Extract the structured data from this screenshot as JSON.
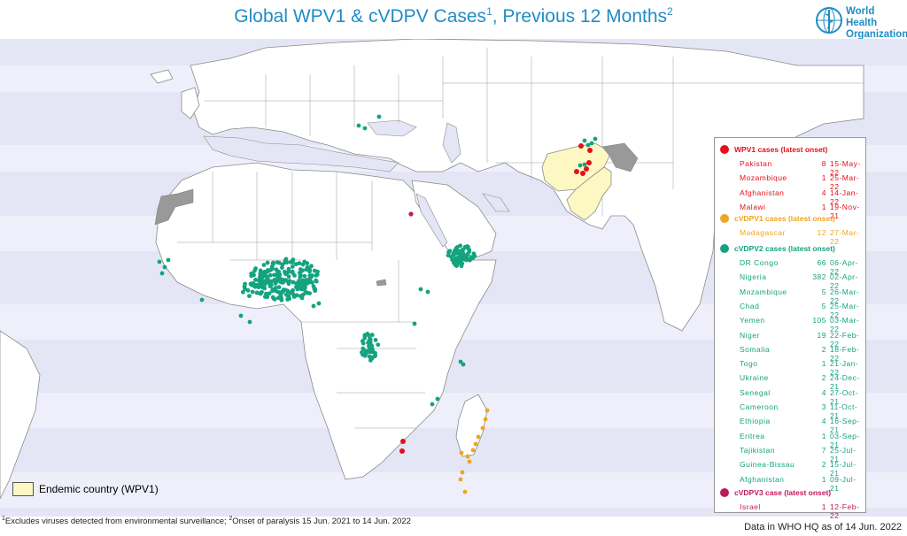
{
  "title": {
    "main": "Global WPV1 & cVDPV Cases",
    "sup1": "1",
    "rest": ", Previous 12 Months",
    "sup2": "2"
  },
  "logo": {
    "org_name": "World Health\nOrganization",
    "icon": "who-emblem-icon"
  },
  "colors": {
    "ocean": "#e4e6f6",
    "ocean_band": "#eeeffb",
    "land": "#ffffff",
    "endemic": "#fdf8c3",
    "no_data": "#999999",
    "wpv1": "#e3101a",
    "cvdpv1": "#f0a51e",
    "cvdpv2": "#14a37f",
    "cvdpv3": "#c0185c"
  },
  "legend": {
    "wpv1": {
      "header": "WPV1 cases (latest onset)",
      "rows": [
        {
          "country": "Pakistan",
          "count": "8",
          "date": "15-May-22"
        },
        {
          "country": "Mozambique",
          "count": "1",
          "date": "25-Mar-22"
        },
        {
          "country": "Afghanistan",
          "count": "4",
          "date": "14-Jan-22"
        },
        {
          "country": "Malawi",
          "count": "1",
          "date": "19-Nov-21"
        }
      ]
    },
    "cvdpv1": {
      "header": "cVDPV1 cases (latest onset)",
      "rows": [
        {
          "country": "Madagascar",
          "count": "12",
          "date": "27-Mar-22"
        }
      ]
    },
    "cvdpv2": {
      "header": "cVDPV2 cases (latest onset)",
      "rows": [
        {
          "country": "DR Congo",
          "count": "66",
          "date": "06-Apr-22"
        },
        {
          "country": "Nigeria",
          "count": "382",
          "date": "02-Apr-22"
        },
        {
          "country": "Mozambique",
          "count": "5",
          "date": "26-Mar-22"
        },
        {
          "country": "Chad",
          "count": "5",
          "date": "25-Mar-22"
        },
        {
          "country": "Yemen",
          "count": "105",
          "date": "03-Mar-22"
        },
        {
          "country": "Niger",
          "count": "19",
          "date": "22-Feb-22"
        },
        {
          "country": "Somalia",
          "count": "2",
          "date": "18-Feb-22"
        },
        {
          "country": "Togo",
          "count": "1",
          "date": "21-Jan-22"
        },
        {
          "country": "Ukraine",
          "count": "2",
          "date": "24-Dec-21"
        },
        {
          "country": "Senegal",
          "count": "4",
          "date": "27-Oct-21"
        },
        {
          "country": "Cameroon",
          "count": "3",
          "date": "11-Oct-21"
        },
        {
          "country": "Ethiopia",
          "count": "4",
          "date": "16-Sep-21"
        },
        {
          "country": "Eritrea",
          "count": "1",
          "date": "03-Sep-21"
        },
        {
          "country": "Tajikistan",
          "count": "7",
          "date": "25-Jul-21"
        },
        {
          "country": "Guinea-Bissau",
          "count": "2",
          "date": "15-Jul-21"
        },
        {
          "country": "Afghanistan",
          "count": "1",
          "date": "09-Jul-21"
        }
      ]
    },
    "cvdpv3": {
      "header": "cVDPV3 case (latest onset)",
      "rows": [
        {
          "country": "Israel",
          "count": "1",
          "date": "12-Feb-22"
        }
      ]
    }
  },
  "endemic_label": "Endemic country (WPV1)",
  "footnote": {
    "sup1": "1",
    "part1": "Excludes viruses detected from environmental surveillance;  ",
    "sup2": "2",
    "part2": "Onset of paralysis 15 Jun. 2021 to 14 Jun. 2022"
  },
  "data_as_of": "Data in WHO HQ as of 14 Jun. 2022"
}
